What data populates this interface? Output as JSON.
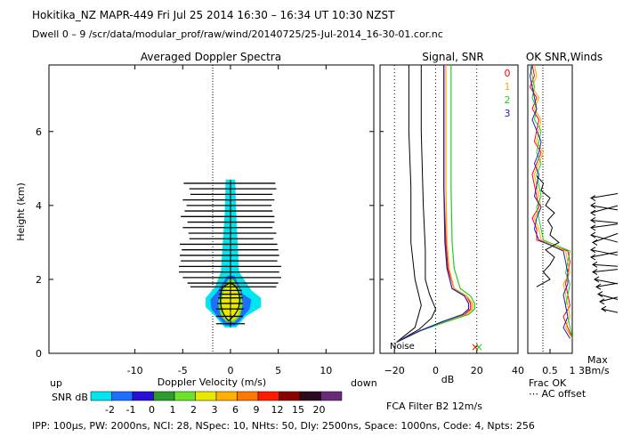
{
  "header": {
    "title": "Hokitika_NZ   MAPR-449   Fri Jul 25 2014 16:30 – 16:34 UT 10:30 NZST",
    "dwell": "Dwell   0  –   9    /scr/data/modular_prof/raw/wind/20140725/25-Jul-2014_16-30-01.cor.nc"
  },
  "footer": {
    "params": "IPP: 100μs,   PW: 2000ns,   NCI:  28,   NSpec: 10,  NHts: 50,   Dly: 2500ns,   Space: 1000ns,   Code: 4,   Npts: 256",
    "filter": "FCA Filter B2 12m/s"
  },
  "colors": {
    "snr_scale": [
      "#00e5ee",
      "#1e6fff",
      "#2a0fd6",
      "#2e9b2e",
      "#6be32a",
      "#e8e800",
      "#ffb000",
      "#ff7800",
      "#ff1a00",
      "#8b0000",
      "#2a0a1e",
      "#6a2a7a"
    ],
    "receivers": [
      "#ff0000",
      "#ffa500",
      "#1fcf1f",
      "#1f1fb0"
    ]
  },
  "chart_data": [
    {
      "type": "heatmap",
      "title": "Averaged Doppler Spectra",
      "xlabel": "Doppler Velocity (m/s)",
      "ylabel": "Height (km)",
      "xlim": [
        -19,
        15
      ],
      "ylim": [
        0,
        7.8
      ],
      "xticks": [
        "-10",
        "-5",
        "0",
        "5",
        "10"
      ],
      "yticks": [
        "0",
        "2",
        "4",
        "6"
      ],
      "x_end_labels": {
        "left": "up",
        "right": "down"
      },
      "colorbar": {
        "label": "SNR dB",
        "ticks": [
          "-2",
          "-1",
          "0",
          "1",
          "2",
          "3",
          "6",
          "9",
          "12",
          "15",
          "20"
        ]
      },
      "spectral_width_bars": [
        {
          "height": 0.8,
          "left": -1.5,
          "right": 1.5
        },
        {
          "height": 1.0,
          "left": -1.5,
          "right": 1.3
        },
        {
          "height": 1.2,
          "left": -1.5,
          "right": 1.4
        },
        {
          "height": 1.35,
          "left": -1.4,
          "right": 1.3
        },
        {
          "height": 1.5,
          "left": -1.3,
          "right": 1.3
        },
        {
          "height": 1.6,
          "left": -1.2,
          "right": 1.2
        },
        {
          "height": 1.7,
          "left": -1.2,
          "right": 1.2
        },
        {
          "height": 1.8,
          "left": -4.2,
          "right": 4.8
        },
        {
          "height": 1.9,
          "left": -4.5,
          "right": 5.0
        },
        {
          "height": 2.05,
          "left": -5.0,
          "right": 5.3
        },
        {
          "height": 2.2,
          "left": -5.4,
          "right": 5.1
        },
        {
          "height": 2.35,
          "left": -5.4,
          "right": 5.3
        },
        {
          "height": 2.5,
          "left": -5.2,
          "right": 4.9
        },
        {
          "height": 2.65,
          "left": -5.3,
          "right": 5.1
        },
        {
          "height": 2.8,
          "left": -5.1,
          "right": 5.0
        },
        {
          "height": 2.95,
          "left": -5.3,
          "right": 4.9
        },
        {
          "height": 3.1,
          "left": -4.3,
          "right": 4.5
        },
        {
          "height": 3.25,
          "left": -4.4,
          "right": 4.8
        },
        {
          "height": 3.4,
          "left": -5.0,
          "right": 4.4
        },
        {
          "height": 3.55,
          "left": -4.5,
          "right": 4.6
        },
        {
          "height": 3.7,
          "left": -5.2,
          "right": 4.6
        },
        {
          "height": 3.85,
          "left": -4.8,
          "right": 4.4
        },
        {
          "height": 4.0,
          "left": -4.6,
          "right": 4.3
        },
        {
          "height": 4.15,
          "left": -5.0,
          "right": 4.6
        },
        {
          "height": 4.3,
          "left": -4.2,
          "right": 4.4
        },
        {
          "height": 4.45,
          "left": -4.3,
          "right": 4.8
        },
        {
          "height": 4.6,
          "left": -4.9,
          "right": 4.7
        }
      ]
    },
    {
      "type": "line",
      "title": "Signal, SNR",
      "xlabel": "dB",
      "xticks": [
        "−20",
        "0",
        "20",
        "40"
      ],
      "xlim": [
        -27,
        40
      ],
      "ylim": [
        0,
        7.8
      ],
      "noise_label": "Noise",
      "series": [
        {
          "name": "0",
          "x": [
            -19,
            -8,
            3,
            14,
            17,
            17,
            15,
            9,
            6,
            5,
            4,
            4,
            4
          ],
          "y": [
            0.3,
            0.6,
            0.85,
            1.05,
            1.2,
            1.35,
            1.55,
            1.75,
            2.3,
            3.0,
            4.5,
            6.0,
            7.8
          ]
        },
        {
          "name": "1",
          "x": [
            -19,
            -8,
            4,
            15,
            18,
            18,
            15,
            9,
            6.5,
            5.5,
            5,
            5,
            5
          ],
          "y": [
            0.3,
            0.6,
            0.85,
            1.05,
            1.2,
            1.35,
            1.55,
            1.75,
            2.3,
            3.0,
            4.5,
            6.0,
            7.8
          ]
        },
        {
          "name": "2",
          "x": [
            -19,
            -8,
            5,
            16,
            19,
            19,
            17,
            12,
            9,
            8,
            7.5,
            7.5,
            7.5
          ],
          "y": [
            0.3,
            0.6,
            0.85,
            1.05,
            1.2,
            1.35,
            1.55,
            1.75,
            2.3,
            3.0,
            4.5,
            6.0,
            7.8
          ]
        },
        {
          "name": "3",
          "x": [
            -19,
            -8,
            3,
            13,
            16,
            16,
            14,
            8,
            5.5,
            4.5,
            4,
            4,
            4
          ],
          "y": [
            0.3,
            0.6,
            0.85,
            1.05,
            1.2,
            1.35,
            1.55,
            1.75,
            2.3,
            3.0,
            4.5,
            6.0,
            7.8
          ]
        }
      ]
    },
    {
      "type": "line",
      "title": "OK SNR,Winds",
      "xlabel": "Frac OK",
      "xticks": [
        "0.5",
        "1"
      ],
      "xlim": [
        0,
        1
      ],
      "ylim": [
        0,
        7.8
      ],
      "legend": [
        "0",
        "1",
        "2",
        "3"
      ],
      "notes": [
        "Max",
        "3Bm/s",
        "⋯ AC offset"
      ]
    }
  ]
}
